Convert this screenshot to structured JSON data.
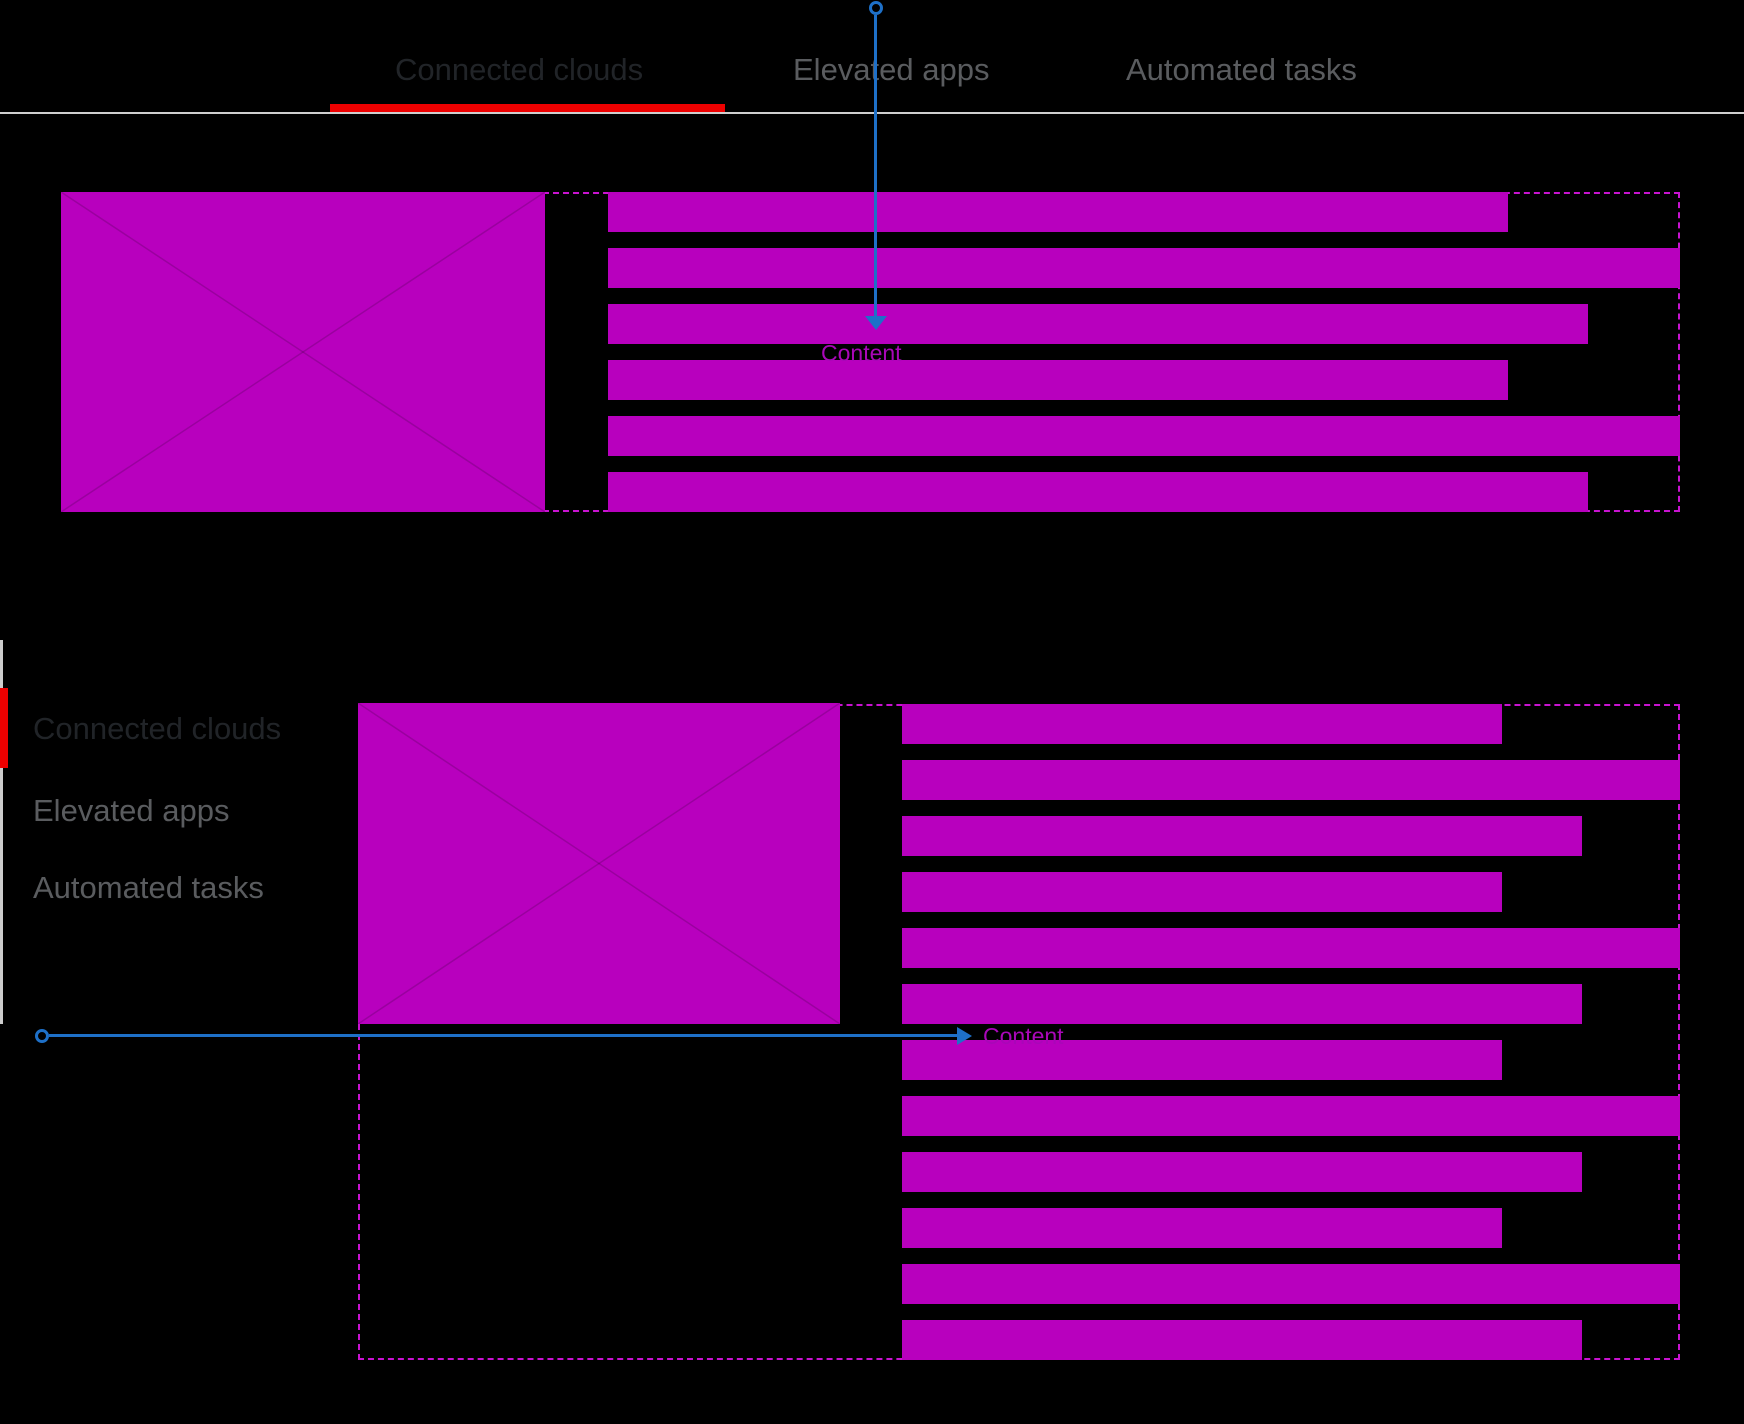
{
  "colors": {
    "magenta": "#B800BE",
    "magenta-border": "#C913D1",
    "magenta-label": "#A907B8",
    "red": "#EE0000",
    "blue": "#1E70C8",
    "gray-rule": "#CFCFCF",
    "gray-sidebar": "#CDCDCD",
    "active-text": "#212428",
    "inactive-text": "#5A5C5F"
  },
  "horizontal_tabs_example": {
    "tabs": [
      {
        "label": "Connected clouds",
        "active": true
      },
      {
        "label": "Elevated apps",
        "active": false
      },
      {
        "label": "Automated tasks",
        "active": false
      }
    ],
    "annotation_label": "Content",
    "skeleton_bar_widths": [
      900,
      1072,
      980,
      900,
      1072,
      980
    ]
  },
  "vertical_tabs_example": {
    "tabs": [
      {
        "label": "Connected clouds",
        "active": true
      },
      {
        "label": "Elevated apps",
        "active": false
      },
      {
        "label": "Automated tasks",
        "active": false
      }
    ],
    "annotation_label": "Content",
    "skeleton_bar_widths": [
      600,
      778,
      680,
      600,
      778,
      680,
      600,
      778,
      680,
      600,
      778,
      680
    ]
  }
}
